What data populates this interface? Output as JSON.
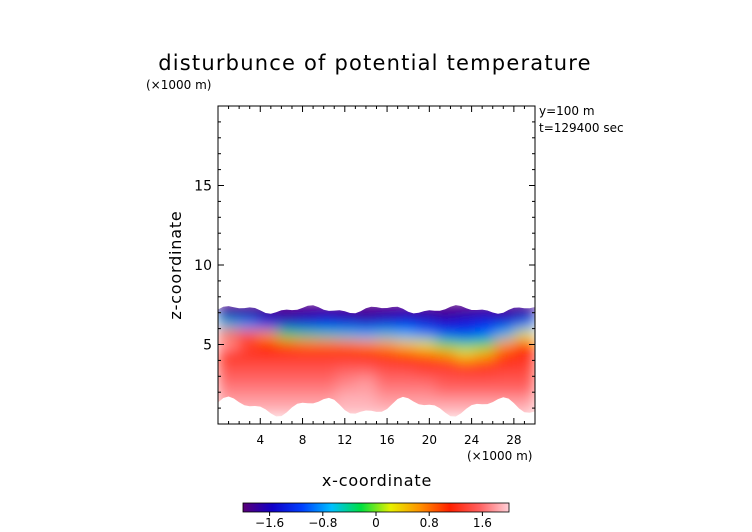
{
  "chart_data": {
    "type": "heatmap",
    "title": "disturbunce of potential temperature",
    "xlabel": "x-coordinate",
    "ylabel": "z-coordinate",
    "x_unit": "(×1000 m)",
    "y_unit": "(×1000 m)",
    "annotations": [
      "y=100 m",
      "t=129400 sec"
    ],
    "xlim": [
      0,
      30
    ],
    "ylim": [
      0,
      20
    ],
    "x_ticks": [
      4,
      8,
      12,
      16,
      20,
      24,
      28
    ],
    "y_ticks": [
      5,
      10,
      15
    ],
    "x_tick_labels": [
      "4",
      "8",
      "12",
      "16",
      "20",
      "24",
      "28"
    ],
    "y_tick_labels": [
      "5",
      "10",
      "15"
    ],
    "colorbar": {
      "range": [
        -2.0,
        2.0
      ],
      "ticks": [
        -1.6,
        -0.8,
        0,
        0.8,
        1.6
      ],
      "tick_labels": [
        "−1.6",
        "−0.8",
        "0",
        "0.8",
        "1.6"
      ],
      "colormap": [
        "#5a0078",
        "#1000c8",
        "#0040ff",
        "#00c0ff",
        "#00e040",
        "#e8f000",
        "#ff9000",
        "#ff2000",
        "#ff6060",
        "#ffd0d8"
      ]
    },
    "field_rows": [
      {
        "z": 7.4,
        "values": [
          -2.0,
          -2.0,
          -2.0,
          -2.0,
          -2.0,
          -2.0,
          -2.0,
          -2.0,
          -2.0,
          -2.0,
          -2.0,
          -2.0,
          -2.0,
          -2.0,
          -2.0,
          -2.0
        ]
      },
      {
        "z": 6.8,
        "values": [
          -1.6,
          -1.6,
          -1.7,
          -1.8,
          -1.7,
          -1.6,
          -1.7,
          -1.8,
          -1.7,
          -1.6,
          -1.7,
          -1.8,
          -1.7,
          -1.6,
          -1.7,
          -1.6
        ]
      },
      {
        "z": 6.2,
        "values": [
          -0.6,
          -0.8,
          -1.2,
          -1.4,
          -1.3,
          -1.2,
          -1.3,
          -1.4,
          -1.3,
          -1.2,
          -1.3,
          -1.4,
          -1.3,
          -1.2,
          -1.2,
          -0.9
        ]
      },
      {
        "z": 5.6,
        "values": [
          0.9,
          1.0,
          0.6,
          -0.2,
          -0.4,
          -0.5,
          -0.6,
          -0.7,
          -0.6,
          -0.7,
          -0.9,
          -1.1,
          -1.2,
          -1.0,
          -0.6,
          0.2
        ]
      },
      {
        "z": 5.0,
        "values": [
          1.8,
          1.4,
          1.1,
          0.9,
          0.8,
          0.8,
          0.8,
          0.7,
          0.6,
          0.4,
          0.2,
          -0.1,
          -0.4,
          -0.2,
          0.6,
          1.0
        ]
      },
      {
        "z": 4.4,
        "values": [
          1.2,
          1.2,
          1.2,
          1.2,
          1.2,
          1.2,
          1.2,
          1.1,
          1.0,
          0.9,
          0.8,
          0.6,
          0.3,
          0.5,
          1.0,
          1.1
        ]
      },
      {
        "z": 3.8,
        "values": [
          1.4,
          1.4,
          1.4,
          1.4,
          1.4,
          1.4,
          1.4,
          1.4,
          1.3,
          1.2,
          1.2,
          1.1,
          0.9,
          1.0,
          1.2,
          1.3
        ]
      },
      {
        "z": 3.2,
        "values": [
          1.5,
          1.5,
          1.5,
          1.5,
          1.5,
          1.5,
          1.6,
          1.6,
          1.5,
          1.5,
          1.4,
          1.4,
          1.3,
          1.3,
          1.4,
          1.4
        ]
      },
      {
        "z": 2.6,
        "values": [
          1.6,
          1.6,
          1.6,
          1.6,
          1.6,
          1.6,
          1.7,
          1.8,
          1.6,
          1.6,
          1.6,
          1.5,
          1.5,
          1.5,
          1.5,
          1.5
        ]
      },
      {
        "z": 2.0,
        "values": [
          1.7,
          1.7,
          1.7,
          1.7,
          1.7,
          1.7,
          1.8,
          1.8,
          1.7,
          1.7,
          1.7,
          1.6,
          1.6,
          1.6,
          1.6,
          1.6
        ]
      },
      {
        "z": 1.4,
        "values": [
          1.8,
          1.8,
          1.8,
          1.8,
          1.8,
          1.8,
          1.9,
          1.9,
          1.8,
          1.8,
          1.8,
          1.8,
          1.8,
          1.8,
          1.8,
          1.8
        ]
      },
      {
        "z": 0.8,
        "values": [
          1.9,
          1.9,
          1.9,
          1.9,
          1.9,
          1.9,
          1.9,
          1.9,
          1.9,
          1.9,
          1.9,
          1.9,
          1.9,
          1.9,
          1.9,
          1.9
        ]
      }
    ]
  }
}
